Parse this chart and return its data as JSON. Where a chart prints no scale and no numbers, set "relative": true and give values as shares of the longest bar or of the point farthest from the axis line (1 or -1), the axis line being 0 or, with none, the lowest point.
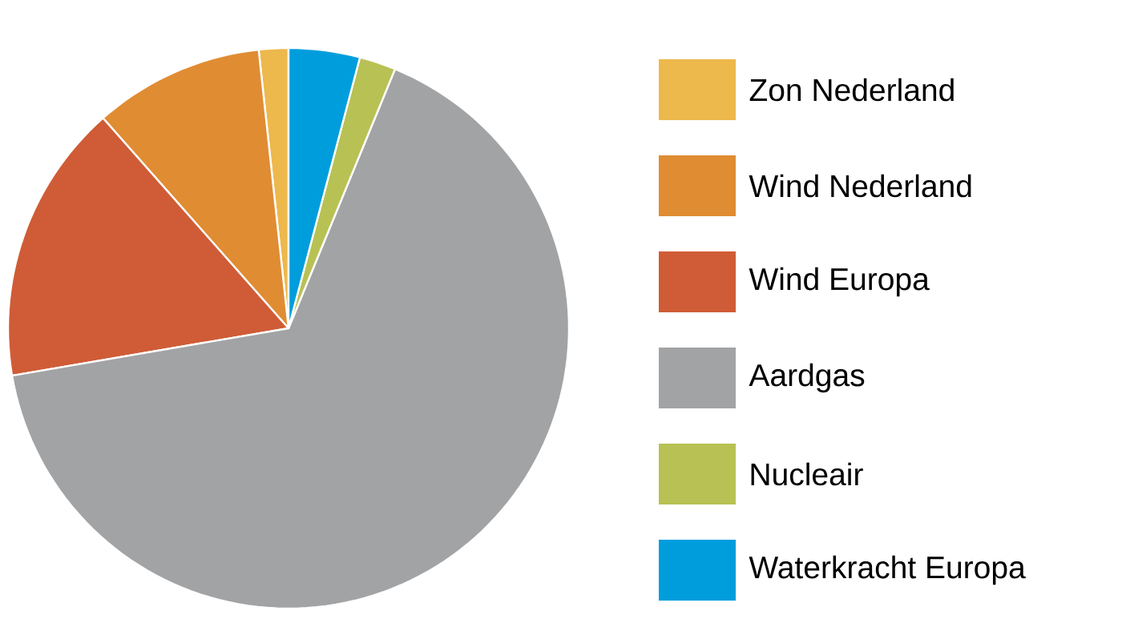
{
  "chart_data": {
    "type": "pie",
    "relative": true,
    "legend": "right",
    "categories": [
      "Zon Nederland",
      "Wind Nederland",
      "Wind Europa",
      "Aardgas",
      "Nucleair",
      "Waterkracht Europa"
    ],
    "values": [
      1.7,
      9.8,
      16.2,
      66.1,
      2.1,
      4.1
    ],
    "colors": [
      "#edb84c",
      "#e08c33",
      "#cf5c36",
      "#a2a3a5",
      "#b8c153",
      "#009ddc"
    ]
  }
}
